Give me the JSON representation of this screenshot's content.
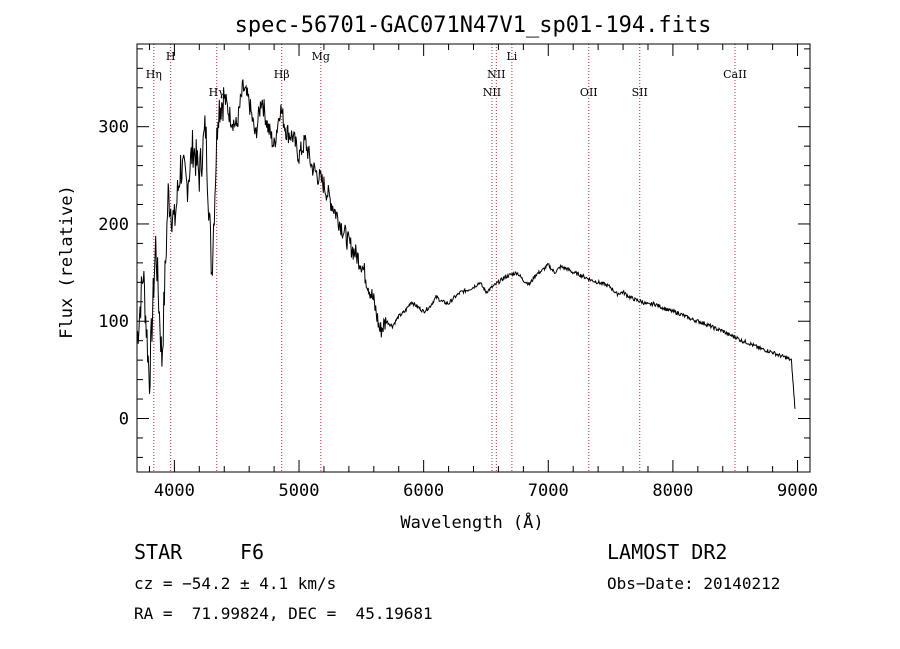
{
  "chart_data": {
    "type": "line",
    "title": "spec-56701-GAC071N47V1_sp01-194.fits",
    "xlabel": "Wavelength (Å)",
    "ylabel": "Flux (relative)",
    "xlim": [
      3700,
      9100
    ],
    "ylim": [
      -55,
      385
    ],
    "x_ticks": [
      4000,
      5000,
      6000,
      7000,
      8000,
      9000
    ],
    "y_ticks": [
      0,
      100,
      200,
      300
    ],
    "grid": false,
    "line_color": "#000000",
    "marker_color": "#b03030",
    "series": [
      {
        "x": [
          3700,
          3750,
          3800,
          3850,
          3900,
          3950,
          4000,
          4050,
          4100,
          4150,
          4200,
          4250,
          4300,
          4350,
          4400,
          4450,
          4500,
          4550,
          4600,
          4650,
          4700,
          4750,
          4800,
          4850,
          4900,
          4950,
          5000,
          5050,
          5100,
          5150,
          5200,
          5250,
          5300,
          5350,
          5400,
          5450,
          5500,
          5550,
          5600,
          5650,
          5700,
          5750,
          5800,
          5850,
          5900,
          5950,
          6000,
          6050,
          6100,
          6150,
          6200,
          6250,
          6300,
          6350,
          6400,
          6450,
          6500,
          6550,
          6600,
          6650,
          6700,
          6750,
          6800,
          6850,
          6900,
          6950,
          7000,
          7050,
          7100,
          7150,
          7200,
          7250,
          7300,
          7350,
          7400,
          7450,
          7500,
          7550,
          7600,
          7650,
          7700,
          7750,
          7800,
          7850,
          7900,
          7950,
          8000,
          8050,
          8100,
          8150,
          8200,
          8250,
          8300,
          8350,
          8400,
          8450,
          8500,
          8550,
          8600,
          8650,
          8700,
          8750,
          8800,
          8850,
          8900,
          8950,
          8980
        ],
        "y": [
          80,
          150,
          40,
          180,
          60,
          230,
          200,
          260,
          240,
          280,
          250,
          300,
          150,
          320,
          330,
          310,
          300,
          340,
          325,
          290,
          330,
          300,
          280,
          320,
          295,
          290,
          270,
          285,
          260,
          250,
          240,
          225,
          210,
          195,
          180,
          170,
          160,
          140,
          120,
          90,
          100,
          95,
          105,
          110,
          120,
          115,
          110,
          115,
          125,
          120,
          118,
          125,
          130,
          132,
          135,
          140,
          130,
          135,
          140,
          145,
          148,
          150,
          142,
          138,
          148,
          152,
          158,
          150,
          156,
          154,
          150,
          148,
          145,
          142,
          140,
          138,
          135,
          128,
          130,
          125,
          122,
          120,
          117,
          118,
          115,
          112,
          110,
          108,
          105,
          102,
          100,
          98,
          95,
          92,
          90,
          86,
          84,
          80,
          78,
          75,
          72,
          70,
          68,
          65,
          63,
          60,
          10
        ]
      }
    ],
    "line_markers": [
      {
        "label": "Hη",
        "x": 3835,
        "row": 2
      },
      {
        "label": "H",
        "x": 3970,
        "row": 1
      },
      {
        "label": "Hγ",
        "x": 4340,
        "row": 3
      },
      {
        "label": "Hβ",
        "x": 4861,
        "row": 2
      },
      {
        "label": "Mg",
        "x": 5175,
        "row": 1
      },
      {
        "label": "NII",
        "x": 6548,
        "row": 3
      },
      {
        "label": "NII",
        "x": 6583,
        "row": 2
      },
      {
        "label": "Li",
        "x": 6708,
        "row": 1
      },
      {
        "label": "OII",
        "x": 7325,
        "row": 3
      },
      {
        "label": "SII",
        "x": 7734,
        "row": 3
      },
      {
        "label": "CaII",
        "x": 8498,
        "row": 2
      }
    ]
  },
  "info": {
    "object_class": "STAR",
    "subclass": "F6",
    "survey": "LAMOST DR2",
    "cz": "cz = −54.2 ± 4.1 km/s",
    "obs_date": "Obs−Date: 20140212",
    "coords": "RA =  71.99824, DEC =  45.19681"
  }
}
